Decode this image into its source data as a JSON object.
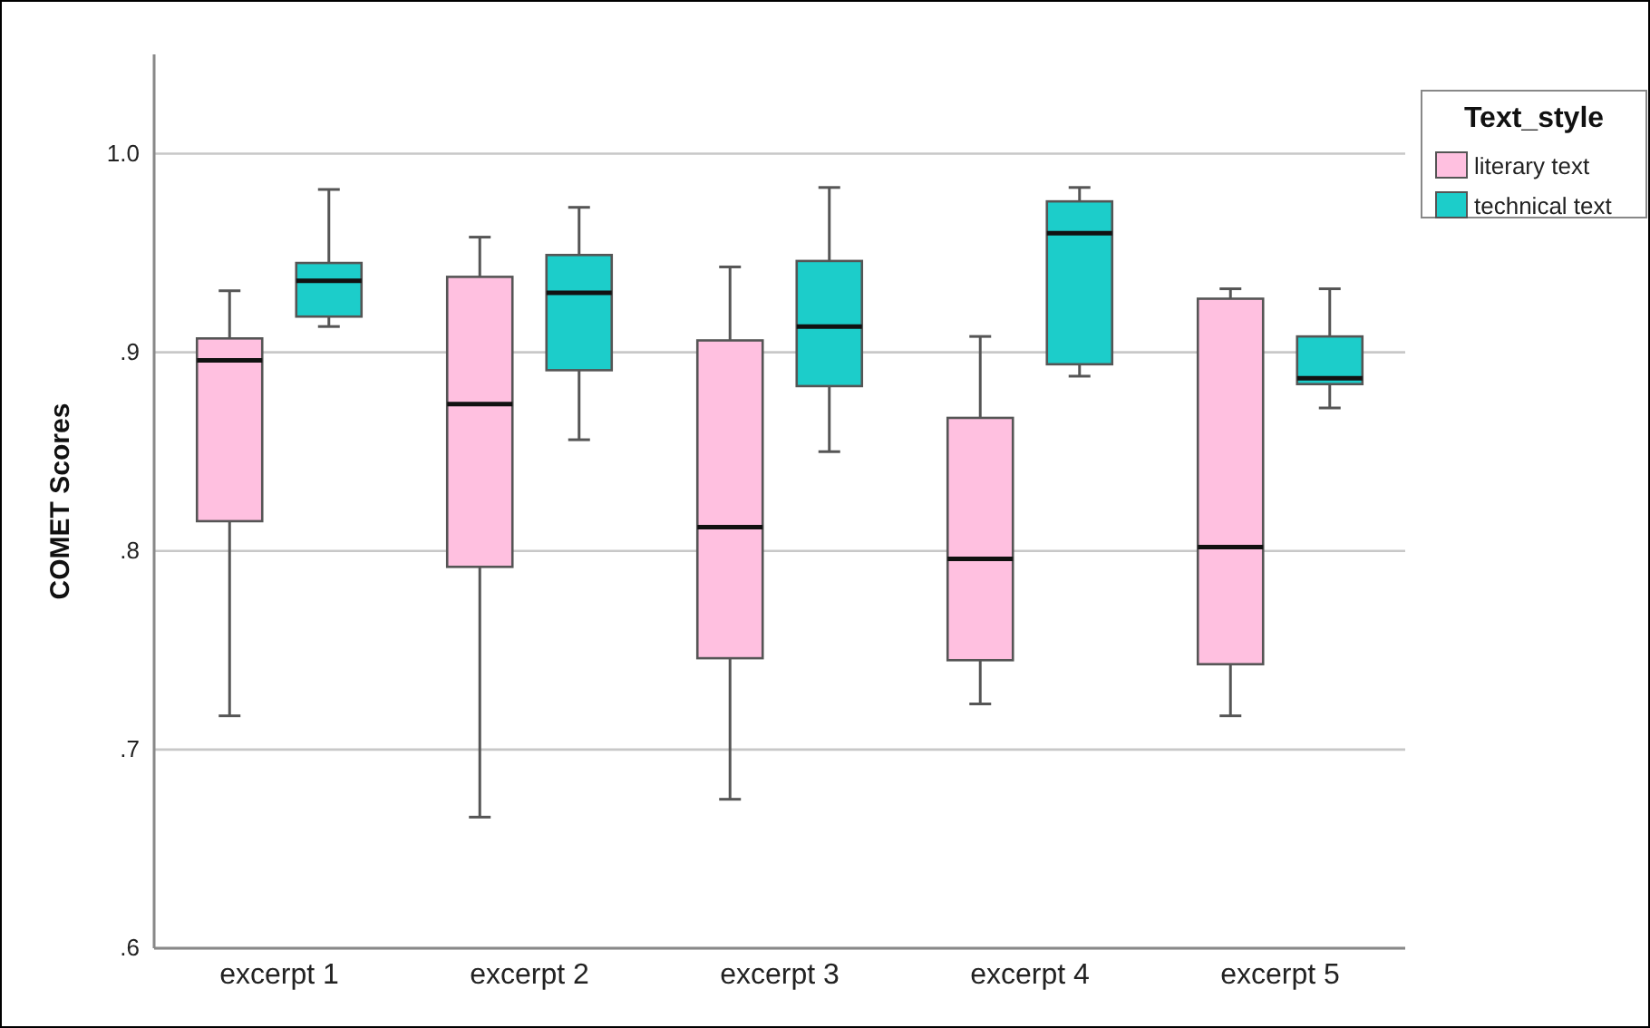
{
  "chart_data": {
    "type": "box",
    "ylabel": "COMET Scores",
    "legend_title": "Text_style",
    "legend": "top right",
    "grid": "y",
    "categories": [
      "excerpt 1",
      "excerpt 2",
      "excerpt 3",
      "excerpt 4",
      "excerpt 5"
    ],
    "ylim": [
      0.6,
      1.05
    ],
    "yticks": [
      {
        "value": 0.6,
        "label": ".6"
      },
      {
        "value": 0.7,
        "label": ".7"
      },
      {
        "value": 0.8,
        "label": ".8"
      },
      {
        "value": 0.9,
        "label": ".9"
      },
      {
        "value": 1.0,
        "label": "1.0"
      }
    ],
    "series": [
      {
        "name": "literary text",
        "color": "#ffc0e0",
        "boxes": [
          {
            "low": 0.717,
            "q1": 0.815,
            "median": 0.896,
            "q3": 0.907,
            "high": 0.931
          },
          {
            "low": 0.666,
            "q1": 0.792,
            "median": 0.874,
            "q3": 0.938,
            "high": 0.958
          },
          {
            "low": 0.675,
            "q1": 0.746,
            "median": 0.812,
            "q3": 0.906,
            "high": 0.943
          },
          {
            "low": 0.723,
            "q1": 0.745,
            "median": 0.796,
            "q3": 0.867,
            "high": 0.908
          },
          {
            "low": 0.717,
            "q1": 0.743,
            "median": 0.802,
            "q3": 0.927,
            "high": 0.932
          }
        ]
      },
      {
        "name": "technical text",
        "color": "#1ccdca",
        "boxes": [
          {
            "low": 0.913,
            "q1": 0.918,
            "median": 0.936,
            "q3": 0.945,
            "high": 0.982
          },
          {
            "low": 0.856,
            "q1": 0.891,
            "median": 0.93,
            "q3": 0.949,
            "high": 0.973
          },
          {
            "low": 0.85,
            "q1": 0.883,
            "median": 0.913,
            "q3": 0.946,
            "high": 0.983
          },
          {
            "low": 0.888,
            "q1": 0.894,
            "median": 0.96,
            "q3": 0.976,
            "high": 0.983
          },
          {
            "low": 0.872,
            "q1": 0.884,
            "median": 0.887,
            "q3": 0.908,
            "high": 0.932
          }
        ]
      }
    ]
  }
}
